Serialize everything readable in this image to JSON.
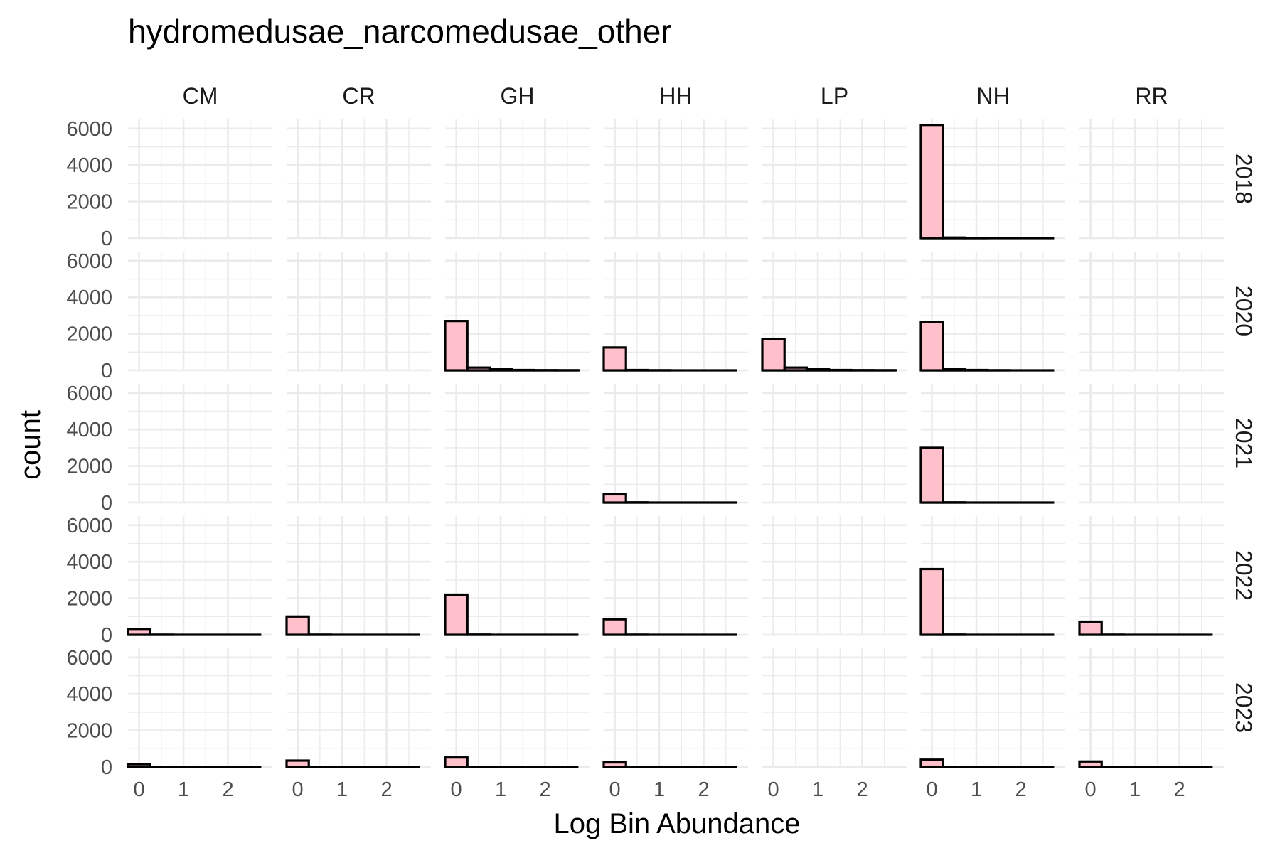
{
  "chart_data": {
    "type": "bar",
    "title": "hydromedusae_narcomedusae_other",
    "xlabel": "Log Bin Abundance",
    "ylabel": "count",
    "facet_cols": [
      "CM",
      "CR",
      "GH",
      "HH",
      "LP",
      "NH",
      "RR"
    ],
    "facet_rows": [
      "2018",
      "2020",
      "2021",
      "2022",
      "2023"
    ],
    "x_ticks": [
      0,
      1,
      2
    ],
    "y_ticks": [
      0,
      2000,
      4000,
      6000
    ],
    "x_range": [
      -0.25,
      3.0
    ],
    "ylim": [
      0,
      6500
    ],
    "bin_width": 0.5,
    "bin_starts": [
      -0.25,
      0.25,
      0.75,
      1.25,
      1.75,
      2.25
    ],
    "grid": true,
    "legend": "none",
    "colors": {
      "bar_fill": "#ffc0cb",
      "bar_outline": "#000000",
      "grid": "#ebebeb"
    },
    "panels": [
      {
        "row": "2018",
        "col": "NH",
        "counts": [
          6200,
          30,
          5,
          0,
          0,
          0
        ]
      },
      {
        "row": "2020",
        "col": "GH",
        "counts": [
          2700,
          150,
          60,
          20,
          10,
          5
        ]
      },
      {
        "row": "2020",
        "col": "HH",
        "counts": [
          1250,
          20,
          5,
          0,
          0,
          0
        ]
      },
      {
        "row": "2020",
        "col": "LP",
        "counts": [
          1700,
          150,
          60,
          20,
          10,
          5
        ]
      },
      {
        "row": "2020",
        "col": "NH",
        "counts": [
          2650,
          80,
          20,
          5,
          0,
          0
        ]
      },
      {
        "row": "2021",
        "col": "HH",
        "counts": [
          450,
          10,
          0,
          0,
          0,
          0
        ]
      },
      {
        "row": "2021",
        "col": "NH",
        "counts": [
          3000,
          10,
          0,
          0,
          0,
          0
        ]
      },
      {
        "row": "2022",
        "col": "CM",
        "counts": [
          320,
          5,
          0,
          0,
          0,
          0
        ]
      },
      {
        "row": "2022",
        "col": "CR",
        "counts": [
          1000,
          5,
          0,
          0,
          0,
          0
        ]
      },
      {
        "row": "2022",
        "col": "GH",
        "counts": [
          2200,
          10,
          0,
          0,
          0,
          0
        ]
      },
      {
        "row": "2022",
        "col": "HH",
        "counts": [
          850,
          5,
          0,
          0,
          0,
          0
        ]
      },
      {
        "row": "2022",
        "col": "NH",
        "counts": [
          3600,
          10,
          0,
          0,
          0,
          0
        ]
      },
      {
        "row": "2022",
        "col": "RR",
        "counts": [
          720,
          5,
          0,
          0,
          0,
          0
        ]
      },
      {
        "row": "2023",
        "col": "CM",
        "counts": [
          150,
          5,
          0,
          0,
          0,
          0
        ]
      },
      {
        "row": "2023",
        "col": "CR",
        "counts": [
          350,
          5,
          0,
          0,
          0,
          0
        ]
      },
      {
        "row": "2023",
        "col": "GH",
        "counts": [
          520,
          5,
          0,
          0,
          0,
          0
        ]
      },
      {
        "row": "2023",
        "col": "HH",
        "counts": [
          250,
          5,
          0,
          0,
          0,
          0
        ]
      },
      {
        "row": "2023",
        "col": "NH",
        "counts": [
          400,
          5,
          0,
          0,
          0,
          0
        ]
      },
      {
        "row": "2023",
        "col": "RR",
        "counts": [
          300,
          5,
          0,
          0,
          0,
          0
        ]
      }
    ]
  }
}
